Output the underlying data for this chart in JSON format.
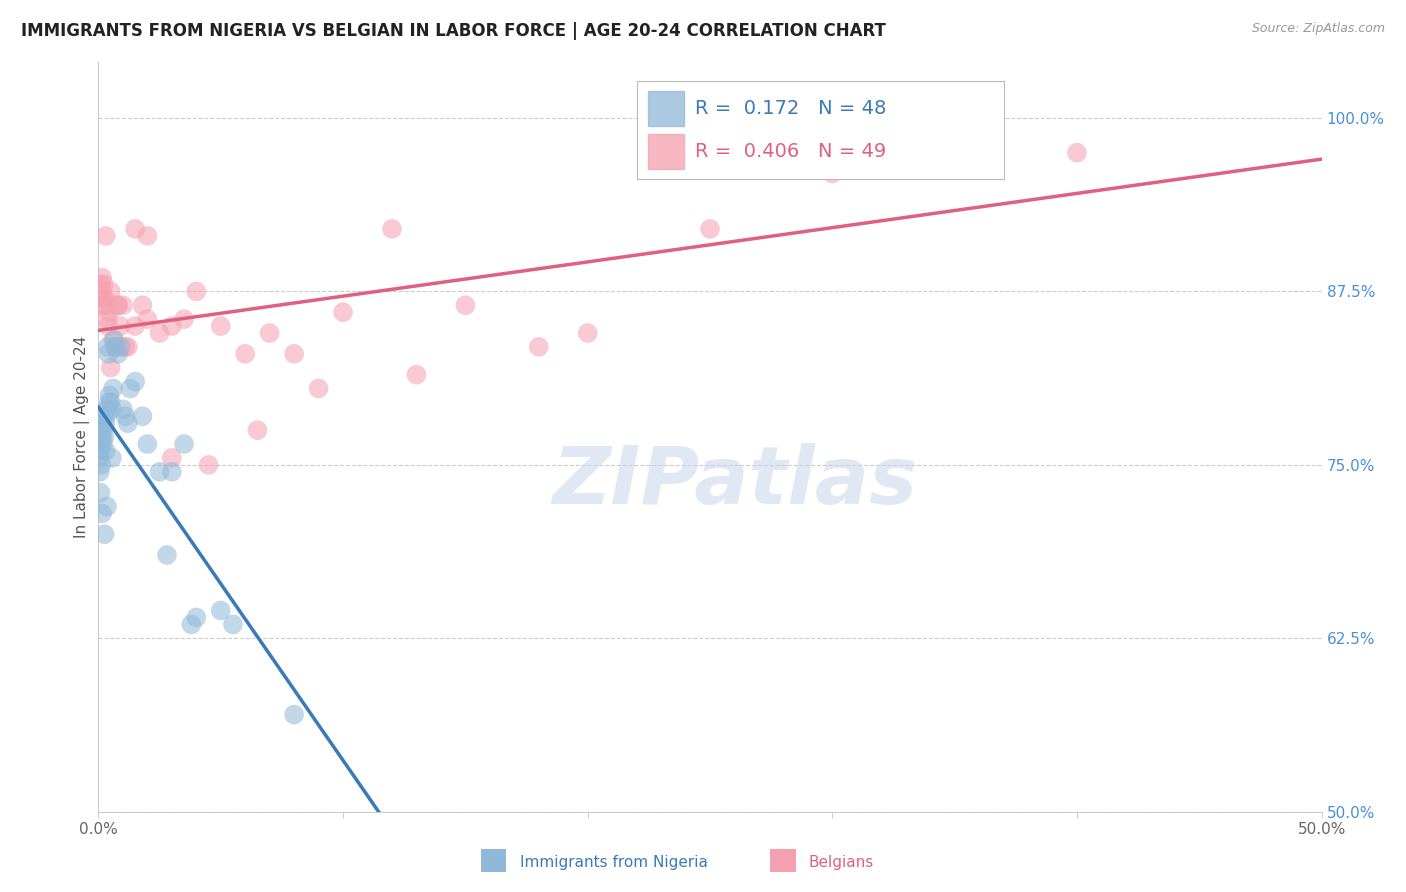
{
  "title": "IMMIGRANTS FROM NIGERIA VS BELGIAN IN LABOR FORCE | AGE 20-24 CORRELATION CHART",
  "source": "Source: ZipAtlas.com",
  "ylabel": "In Labor Force | Age 20-24",
  "y_ticks": [
    50.0,
    62.5,
    75.0,
    87.5,
    100.0
  ],
  "y_tick_labels": [
    "50.0%",
    "62.5%",
    "75.0%",
    "87.5%",
    "100.0%"
  ],
  "x_ticks": [
    0.0,
    10.0,
    20.0,
    30.0,
    40.0,
    50.0
  ],
  "x_tick_labels": [
    "0.0%",
    "",
    "",
    "",
    "",
    "50.0%"
  ],
  "x_min": 0.0,
  "x_max": 50.0,
  "y_min": 50.0,
  "y_max": 104.0,
  "nigeria_R": 0.172,
  "nigeria_N": 48,
  "belgian_R": 0.406,
  "belgian_N": 49,
  "nigeria_scatter_color": "#90b8d8",
  "belgian_scatter_color": "#f5a0b0",
  "nigeria_line_color": "#3a7ab8",
  "belgian_line_color": "#e06080",
  "dashed_color": "#90b8d8",
  "nigeria_x": [
    0.05,
    0.06,
    0.08,
    0.08,
    0.1,
    0.12,
    0.12,
    0.15,
    0.15,
    0.18,
    0.2,
    0.22,
    0.25,
    0.28,
    0.3,
    0.3,
    0.35,
    0.38,
    0.4,
    0.42,
    0.45,
    0.5,
    0.55,
    0.6,
    0.65,
    0.7,
    0.8,
    0.9,
    1.0,
    1.1,
    1.2,
    1.3,
    1.5,
    1.8,
    2.0,
    2.5,
    3.0,
    3.5,
    4.0,
    5.0,
    0.15,
    0.25,
    0.35,
    0.55,
    2.8,
    3.8,
    5.5,
    8.0
  ],
  "nigeria_y": [
    75.5,
    74.5,
    73.0,
    76.0,
    76.5,
    75.0,
    77.5,
    77.0,
    78.0,
    76.5,
    77.5,
    78.5,
    77.0,
    78.0,
    78.5,
    76.0,
    79.0,
    83.5,
    83.0,
    79.5,
    80.0,
    79.5,
    79.0,
    80.5,
    84.0,
    83.5,
    83.0,
    83.5,
    79.0,
    78.5,
    78.0,
    80.5,
    81.0,
    78.5,
    76.5,
    74.5,
    74.5,
    76.5,
    64.0,
    64.5,
    71.5,
    70.0,
    72.0,
    75.5,
    68.5,
    63.5,
    63.5,
    57.0
  ],
  "belgian_x": [
    0.1,
    0.12,
    0.15,
    0.18,
    0.22,
    0.25,
    0.3,
    0.35,
    0.4,
    0.45,
    0.5,
    0.6,
    0.7,
    0.8,
    0.9,
    1.0,
    1.2,
    1.5,
    1.8,
    2.0,
    2.5,
    3.0,
    3.5,
    4.0,
    5.0,
    6.0,
    7.0,
    8.0,
    10.0,
    12.0,
    15.0,
    20.0,
    25.0,
    30.0,
    0.2,
    0.3,
    0.5,
    0.8,
    1.1,
    1.5,
    2.0,
    3.0,
    4.5,
    6.5,
    9.0,
    13.0,
    18.0,
    28.0,
    40.0
  ],
  "belgian_y": [
    88.0,
    87.5,
    88.5,
    86.5,
    88.0,
    87.0,
    86.5,
    85.5,
    85.0,
    86.0,
    87.5,
    84.0,
    83.5,
    86.5,
    85.0,
    86.5,
    83.5,
    85.0,
    86.5,
    85.5,
    84.5,
    85.0,
    85.5,
    87.5,
    85.0,
    83.0,
    84.5,
    83.0,
    86.0,
    92.0,
    86.5,
    84.5,
    92.0,
    96.0,
    87.0,
    91.5,
    82.0,
    86.5,
    83.5,
    92.0,
    91.5,
    75.5,
    75.0,
    77.5,
    80.5,
    81.5,
    83.5,
    100.0,
    97.5
  ],
  "watermark_text": "ZIPatlas",
  "background_color": "#ffffff"
}
